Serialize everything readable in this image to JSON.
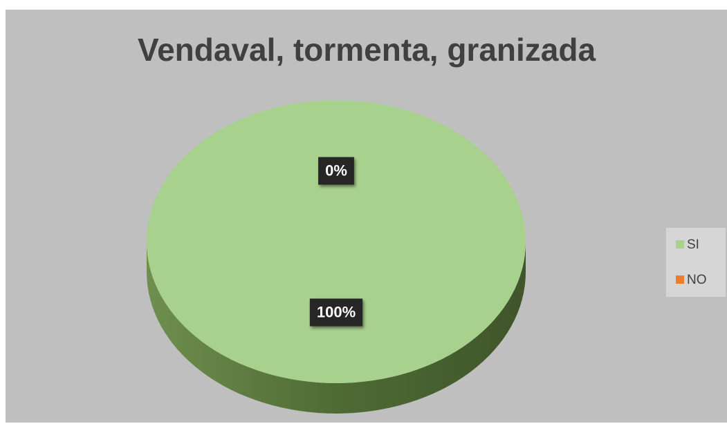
{
  "chart_data": {
    "type": "pie",
    "title": "Vendaval, tormenta, granizada",
    "categories": [
      "SI",
      "NO"
    ],
    "values": [
      100,
      0
    ],
    "value_labels": [
      "100%",
      "0%"
    ],
    "colors": [
      "#a9d18e",
      "#ed7d31"
    ],
    "legend": "right"
  }
}
